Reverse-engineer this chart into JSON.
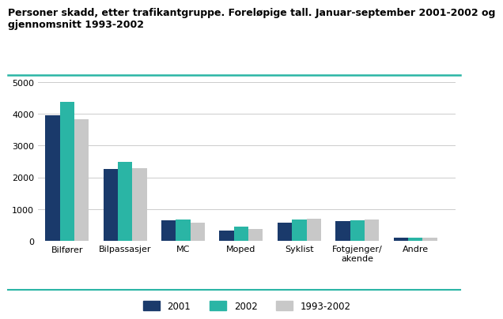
{
  "title_line1": "Personer skadd, etter trafikantgruppe. Foreløpige tall. Januar-september 2001-2002 og",
  "title_line2": "gjennomsnitt 1993-2002",
  "categories": [
    "Bilfører",
    "Bilpassasjer",
    "MC",
    "Moped",
    "Syklist",
    "Fotgjenger/\nakende",
    "Andre"
  ],
  "series": {
    "2001": [
      3950,
      2270,
      640,
      320,
      560,
      610,
      100
    ],
    "2002": [
      4390,
      2490,
      660,
      450,
      670,
      640,
      105
    ],
    "1993-2002": [
      3820,
      2280,
      580,
      360,
      690,
      660,
      95
    ]
  },
  "colors": {
    "2001": "#1a3a6b",
    "2002": "#2ab5a5",
    "1993-2002": "#c8c8c8"
  },
  "ylim": [
    0,
    5000
  ],
  "yticks": [
    0,
    1000,
    2000,
    3000,
    4000,
    5000
  ],
  "bar_width": 0.25,
  "background_color": "#ffffff",
  "grid_color": "#cccccc",
  "title_fontsize": 9,
  "tick_fontsize": 8,
  "legend_fontsize": 8.5,
  "top_line_color": "#2ab5a5",
  "bottom_line_color": "#2ab5a5"
}
